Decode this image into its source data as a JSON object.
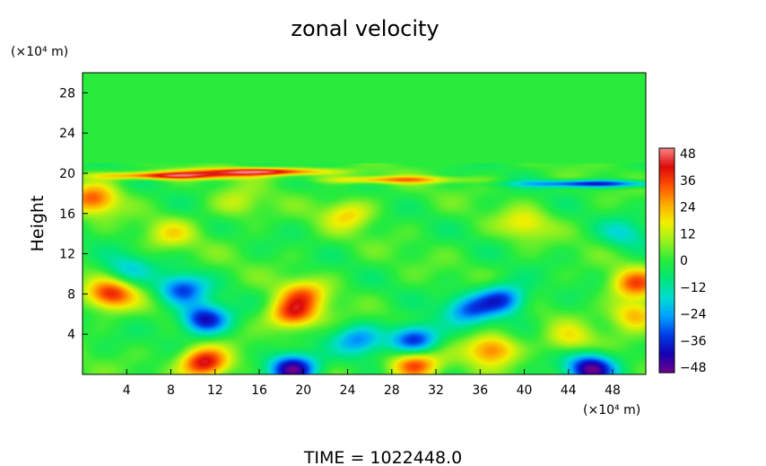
{
  "chart_data": {
    "type": "heatmap",
    "title": "zonal velocity",
    "ylabel": "Height",
    "y_unit_label": "(×10⁴ m)",
    "x_unit_label": "(×10⁴ m)",
    "xlim": [
      0,
      51
    ],
    "ylim": [
      0,
      30
    ],
    "x_ticks": [
      "4",
      "8",
      "12",
      "16",
      "20",
      "24",
      "28",
      "32",
      "36",
      "40",
      "44",
      "48"
    ],
    "y_ticks": [
      "4",
      "8",
      "12",
      "16",
      "20",
      "24",
      "28"
    ],
    "colorbar": {
      "min": -48,
      "max": 48,
      "labels": [
        "48",
        "36",
        "24",
        "12",
        "0",
        "−12",
        "−24",
        "−36",
        "−48"
      ]
    },
    "background_value": 0,
    "features": [
      {
        "x": 11,
        "y": 5.5,
        "value": -40
      },
      {
        "x": 9,
        "y": 8.5,
        "value": -30
      },
      {
        "x": 4,
        "y": 10.5,
        "value": -16
      },
      {
        "x": 19,
        "y": 6,
        "value": 36
      },
      {
        "x": 20,
        "y": 8,
        "value": 24
      },
      {
        "x": 11,
        "y": 1.2,
        "value": 44
      },
      {
        "x": 19,
        "y": 0.6,
        "value": -48
      },
      {
        "x": 30,
        "y": 3.5,
        "value": -38
      },
      {
        "x": 30,
        "y": 1.0,
        "value": 36
      },
      {
        "x": 25,
        "y": 3.5,
        "value": -24
      },
      {
        "x": 38,
        "y": 7.5,
        "value": -34
      },
      {
        "x": 35,
        "y": 6.5,
        "value": -26
      },
      {
        "x": 37,
        "y": 2.5,
        "value": 30
      },
      {
        "x": 46,
        "y": 0.6,
        "value": -44
      },
      {
        "x": 46,
        "y": 19,
        "value": -38
      },
      {
        "x": 44,
        "y": 3.5,
        "value": 16
      },
      {
        "x": 2.5,
        "y": 8,
        "value": 36
      },
      {
        "x": 1,
        "y": 17.5,
        "value": 30
      },
      {
        "x": 28,
        "y": 19.4,
        "value": 26
      },
      {
        "x": 8,
        "y": 19.8,
        "value": 42
      },
      {
        "x": 16,
        "y": 20.2,
        "value": 46
      },
      {
        "x": 8,
        "y": 14,
        "value": 14
      },
      {
        "x": 24,
        "y": 16,
        "value": 18
      },
      {
        "x": 40,
        "y": 15,
        "value": 16
      },
      {
        "x": 14,
        "y": 17,
        "value": 12
      },
      {
        "x": 50,
        "y": 9,
        "value": 30
      },
      {
        "x": 50,
        "y": 6,
        "value": 24
      },
      {
        "x": 49,
        "y": 14,
        "value": -14
      }
    ]
  },
  "footer": {
    "time_label": "TIME  =  1022448.0"
  }
}
